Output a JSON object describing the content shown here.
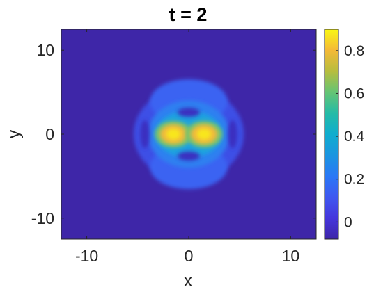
{
  "chart_data": {
    "type": "heatmap",
    "title": "t = 2",
    "xlabel": "x",
    "ylabel": "y",
    "xlim": [
      -12.5,
      12.5
    ],
    "ylim": [
      -12.5,
      12.5
    ],
    "xticks": [
      -10,
      0,
      10
    ],
    "yticks": [
      -10,
      0,
      10
    ],
    "xtick_labels": [
      "-10",
      "0",
      "10"
    ],
    "ytick_labels": [
      "-10",
      "0",
      "10"
    ],
    "colorbar": {
      "range": [
        -0.08,
        0.9
      ],
      "ticks": [
        0,
        0.2,
        0.4,
        0.6,
        0.8
      ],
      "tick_labels": [
        "0",
        "0.2",
        "0.4",
        "0.6",
        "0.8"
      ],
      "colormap": "parula"
    },
    "features": [
      {
        "name": "peak-left",
        "x": -1.5,
        "y": 0,
        "value": 0.88
      },
      {
        "name": "peak-right",
        "x": 1.5,
        "y": 0,
        "value": 0.88
      },
      {
        "name": "ring-top-dip",
        "x": 0,
        "y": 2.6,
        "value": -0.02
      },
      {
        "name": "ring-bottom-dip",
        "x": 0,
        "y": -2.6,
        "value": -0.02
      },
      {
        "name": "side-arc-left",
        "x": -4.3,
        "y": 0,
        "value": -0.03
      },
      {
        "name": "side-arc-right",
        "x": 4.3,
        "y": 0,
        "value": -0.03
      },
      {
        "name": "background",
        "x": 0,
        "y": 10,
        "value": -0.08
      }
    ]
  }
}
